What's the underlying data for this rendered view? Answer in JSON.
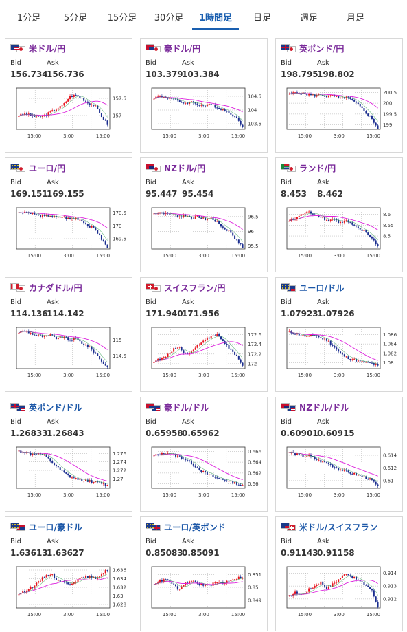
{
  "tabs": [
    {
      "label": "1分足",
      "active": false
    },
    {
      "label": "5分足",
      "active": false
    },
    {
      "label": "15分足",
      "active": false
    },
    {
      "label": "30分足",
      "active": false
    },
    {
      "label": "1時間足",
      "active": true
    },
    {
      "label": "日足",
      "active": false
    },
    {
      "label": "週足",
      "active": false
    },
    {
      "label": "月足",
      "active": false
    }
  ],
  "labels": {
    "bid": "Bid",
    "ask": "Ask"
  },
  "x_ticks": [
    "15:00",
    "3:00",
    "15:00"
  ],
  "colors": {
    "up": "#e8141e",
    "down": "#1a2d8f",
    "ma_pink": "#dd22dd",
    "ma_green": "#2a9a4a",
    "pair_purple": "#7a2a9a",
    "pair_blue": "#1d58a8"
  },
  "cards": [
    {
      "pair": "米ドル/円",
      "flags": [
        "US",
        "JP"
      ],
      "bid": "156.734",
      "ask": "156.736",
      "ticks": [
        "157.5",
        "157"
      ],
      "ylim": [
        156.6,
        157.8
      ],
      "trend": [
        157.0,
        157.05,
        157.0,
        156.95,
        157.0,
        157.1,
        157.2,
        157.3,
        157.55,
        157.6,
        157.5,
        157.35,
        157.3,
        157.0,
        156.75
      ],
      "colorClass": "purple"
    },
    {
      "pair": "豪ドル/円",
      "flags": [
        "AU",
        "JP"
      ],
      "bid": "103.379",
      "ask": "103.384",
      "ticks": [
        "104.5",
        "104",
        "103.5"
      ],
      "ylim": [
        103.3,
        104.8
      ],
      "trend": [
        104.45,
        104.5,
        104.45,
        104.4,
        104.3,
        104.25,
        104.3,
        104.2,
        104.15,
        104.2,
        104.1,
        104.0,
        103.9,
        103.7,
        103.4
      ],
      "colorClass": "purple"
    },
    {
      "pair": "英ポンド/円",
      "flags": [
        "GB",
        "JP"
      ],
      "bid": "198.795",
      "ask": "198.802",
      "ticks": [
        "200.5",
        "200",
        "199.5",
        "199"
      ],
      "ylim": [
        198.8,
        200.7
      ],
      "trend": [
        200.4,
        200.5,
        200.45,
        200.4,
        200.35,
        200.4,
        200.3,
        200.35,
        200.2,
        200.3,
        200.1,
        199.9,
        199.6,
        199.3,
        198.85
      ],
      "colorClass": "purple"
    },
    {
      "pair": "ユーロ/円",
      "flags": [
        "EU",
        "JP"
      ],
      "bid": "169.151",
      "ask": "169.155",
      "ticks": [
        "170.5",
        "170",
        "169.5"
      ],
      "ylim": [
        169.1,
        170.7
      ],
      "trend": [
        170.5,
        170.55,
        170.5,
        170.4,
        170.35,
        170.4,
        170.3,
        170.35,
        170.25,
        170.3,
        170.2,
        170.0,
        169.9,
        169.5,
        169.15
      ],
      "colorClass": "purple"
    },
    {
      "pair": "NZドル/円",
      "flags": [
        "NZ",
        "JP"
      ],
      "bid": "95.447",
      "ask": "95.454",
      "ticks": [
        "96.5",
        "96",
        "95.5"
      ],
      "ylim": [
        95.4,
        96.8
      ],
      "trend": [
        96.6,
        96.65,
        96.6,
        96.55,
        96.5,
        96.55,
        96.45,
        96.5,
        96.4,
        96.45,
        96.3,
        96.1,
        96.0,
        95.7,
        95.45
      ],
      "colorClass": "purple"
    },
    {
      "pair": "ランド/円",
      "flags": [
        "ZA",
        "JP"
      ],
      "bid": "8.453",
      "ask": "8.462",
      "ticks": [
        "8.6",
        "8.55",
        "8.5"
      ],
      "ylim": [
        8.44,
        8.63
      ],
      "trend": [
        8.57,
        8.58,
        8.6,
        8.61,
        8.6,
        8.59,
        8.57,
        8.58,
        8.56,
        8.57,
        8.55,
        8.53,
        8.52,
        8.49,
        8.455
      ],
      "colorClass": "purple"
    },
    {
      "pair": "カナダドル/円",
      "flags": [
        "CA",
        "JP"
      ],
      "bid": "114.136",
      "ask": "114.142",
      "ticks": [
        "115",
        "114.5"
      ],
      "ylim": [
        114.1,
        115.4
      ],
      "trend": [
        115.25,
        115.3,
        115.2,
        115.15,
        115.1,
        115.15,
        115.05,
        115.1,
        115.0,
        115.05,
        114.9,
        114.8,
        114.6,
        114.35,
        114.14
      ],
      "colorClass": "purple"
    },
    {
      "pair": "スイスフラン/円",
      "flags": [
        "CH",
        "JP"
      ],
      "bid": "171.940",
      "ask": "171.956",
      "ticks": [
        "172.6",
        "172.4",
        "172.2",
        "172"
      ],
      "ylim": [
        171.9,
        172.75
      ],
      "trend": [
        172.05,
        172.1,
        172.15,
        172.3,
        172.35,
        172.2,
        172.25,
        172.4,
        172.5,
        172.55,
        172.6,
        172.45,
        172.3,
        172.15,
        171.95
      ],
      "colorClass": "purple"
    },
    {
      "pair": "ユーロ/ドル",
      "flags": [
        "EU",
        "US"
      ],
      "bid": "1.07923",
      "ask": "1.07926",
      "ticks": [
        "1.086",
        "1.084",
        "1.082",
        "1.08"
      ],
      "ylim": [
        1.0788,
        1.0875
      ],
      "trend": [
        1.0865,
        1.0862,
        1.0858,
        1.0855,
        1.086,
        1.0852,
        1.0848,
        1.0835,
        1.082,
        1.0812,
        1.0808,
        1.0803,
        1.0801,
        1.0799,
        1.0793
      ],
      "colorClass": "blue"
    },
    {
      "pair": "英ポンド/ドル",
      "flags": [
        "GB",
        "US"
      ],
      "bid": "1.26833",
      "ask": "1.26843",
      "ticks": [
        "1.276",
        "1.274",
        "1.272",
        "1.27"
      ],
      "ylim": [
        1.2678,
        1.2775
      ],
      "trend": [
        1.2765,
        1.2762,
        1.2758,
        1.276,
        1.2755,
        1.2742,
        1.2728,
        1.2715,
        1.2705,
        1.27,
        1.2698,
        1.2695,
        1.2692,
        1.269,
        1.2684
      ],
      "colorClass": "blue"
    },
    {
      "pair": "豪ドル/ドル",
      "flags": [
        "AU",
        "US"
      ],
      "bid": "0.65958",
      "ask": "0.65962",
      "ticks": [
        "0.666",
        "0.664",
        "0.662",
        "0.66"
      ],
      "ylim": [
        0.6592,
        0.6668
      ],
      "trend": [
        0.6652,
        0.6655,
        0.6658,
        0.6654,
        0.665,
        0.6645,
        0.6638,
        0.6628,
        0.662,
        0.6615,
        0.661,
        0.6608,
        0.6604,
        0.6601,
        0.6596
      ],
      "colorClass": "purple"
    },
    {
      "pair": "NZドル/ドル",
      "flags": [
        "NZ",
        "US"
      ],
      "bid": "0.60901",
      "ask": "0.60915",
      "ticks": [
        "0.614",
        "0.612",
        "0.61"
      ],
      "ylim": [
        0.6088,
        0.6153
      ],
      "trend": [
        0.6145,
        0.6142,
        0.6138,
        0.614,
        0.6135,
        0.613,
        0.6128,
        0.6122,
        0.6118,
        0.6114,
        0.6111,
        0.6108,
        0.6105,
        0.6101,
        0.609
      ],
      "colorClass": "purple"
    },
    {
      "pair": "ユーロ/豪ドル",
      "flags": [
        "EU",
        "AU"
      ],
      "bid": "1.63613",
      "ask": "1.63627",
      "ticks": [
        "1.636",
        "1.634",
        "1.632",
        "1.63",
        "1.628"
      ],
      "ylim": [
        1.6272,
        1.6368
      ],
      "trend": [
        1.6305,
        1.6312,
        1.632,
        1.633,
        1.6345,
        1.6352,
        1.6338,
        1.6332,
        1.6328,
        1.6335,
        1.6342,
        1.6345,
        1.634,
        1.635,
        1.6361
      ],
      "colorClass": "blue"
    },
    {
      "pair": "ユーロ/英ポンド",
      "flags": [
        "EU",
        "GB"
      ],
      "bid": "0.85083",
      "ask": "0.85091",
      "ticks": [
        "0.851",
        "0.85",
        "0.849"
      ],
      "ylim": [
        0.8484,
        0.8516
      ],
      "trend": [
        0.8503,
        0.8505,
        0.8506,
        0.8502,
        0.8498,
        0.8503,
        0.8505,
        0.8503,
        0.8501,
        0.8502,
        0.8504,
        0.8503,
        0.8506,
        0.8507,
        0.8508
      ],
      "colorClass": "blue"
    },
    {
      "pair": "米ドル/スイスフラン",
      "flags": [
        "US",
        "CH"
      ],
      "bid": "0.91143",
      "ask": "0.91158",
      "ticks": [
        "0.914",
        "0.913",
        "0.912"
      ],
      "ylim": [
        0.9113,
        0.9145
      ],
      "trend": [
        0.9122,
        0.9125,
        0.9123,
        0.9127,
        0.913,
        0.9133,
        0.9128,
        0.9132,
        0.9136,
        0.914,
        0.9137,
        0.9134,
        0.9131,
        0.9127,
        0.9114
      ],
      "colorClass": "blue"
    }
  ]
}
